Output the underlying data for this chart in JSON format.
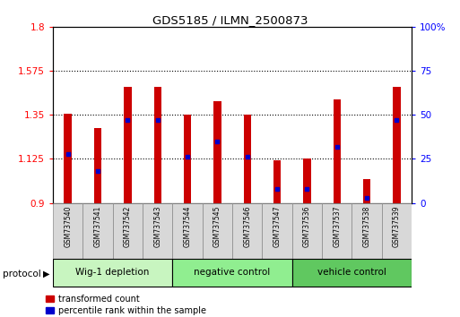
{
  "title": "GDS5185 / ILMN_2500873",
  "samples": [
    "GSM737540",
    "GSM737541",
    "GSM737542",
    "GSM737543",
    "GSM737544",
    "GSM737545",
    "GSM737546",
    "GSM737547",
    "GSM737536",
    "GSM737537",
    "GSM737538",
    "GSM737539"
  ],
  "bar_values": [
    1.355,
    1.285,
    1.495,
    1.495,
    1.35,
    1.42,
    1.35,
    1.12,
    1.125,
    1.43,
    1.02,
    1.495
  ],
  "percentile_values": [
    28,
    18,
    47,
    47,
    26,
    35,
    26,
    8,
    8,
    32,
    3,
    47
  ],
  "groups": [
    {
      "label": "Wig-1 depletion",
      "start": 0,
      "end": 3
    },
    {
      "label": "negative control",
      "start": 4,
      "end": 7
    },
    {
      "label": "vehicle control",
      "start": 8,
      "end": 11
    }
  ],
  "group_colors": [
    "#c8f5c0",
    "#90ee90",
    "#60c860"
  ],
  "ymin": 0.9,
  "ymax": 1.8,
  "yticks_left": [
    0.9,
    1.125,
    1.35,
    1.575,
    1.8
  ],
  "yticks_right": [
    0,
    25,
    50,
    75,
    100
  ],
  "bar_color": "#cc0000",
  "marker_color": "#0000cc",
  "bar_width": 0.25,
  "legend_items": [
    "transformed count",
    "percentile rank within the sample"
  ]
}
